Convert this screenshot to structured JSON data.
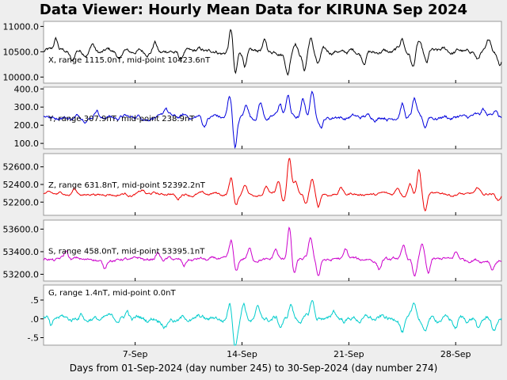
{
  "title": "Data Viewer:  Hourly Mean Data for KIRUNA Sep 2024",
  "chart_data": {
    "type": "line",
    "xlabel": "Days from 01-Sep-2024 (day number 245) to 30-Sep-2024 (day number 274)",
    "xlim": [
      1,
      31
    ],
    "xticks": [
      {
        "label": "7-Sep",
        "value": 7
      },
      {
        "label": "14-Sep",
        "value": 14
      },
      {
        "label": "21-Sep",
        "value": 21
      },
      {
        "label": "28-Sep",
        "value": 28
      }
    ],
    "series": [
      {
        "name": "X",
        "color": "#000000",
        "annotation": "X, range 1115.0nT, mid-point 10423.6nT",
        "ylim": [
          9880,
          11100
        ],
        "yticks": [
          {
            "label": "11000.0",
            "value": 11000
          },
          {
            "label": "10500.0",
            "value": 10500
          },
          {
            "label": "10000.0",
            "value": 10000
          }
        ],
        "base": 10500,
        "noise": 60,
        "events": [
          {
            "day": 1.8,
            "amp": 250
          },
          {
            "day": 2.9,
            "amp": -200
          },
          {
            "day": 4.2,
            "amp": 150
          },
          {
            "day": 6.0,
            "amp": -180
          },
          {
            "day": 8.3,
            "amp": 180
          },
          {
            "day": 10.0,
            "amp": -160
          },
          {
            "day": 13.3,
            "amp": 460
          },
          {
            "day": 13.55,
            "amp": -500
          },
          {
            "day": 14.2,
            "amp": -280
          },
          {
            "day": 15.5,
            "amp": 200
          },
          {
            "day": 17.0,
            "amp": -420
          },
          {
            "day": 17.5,
            "amp": 220
          },
          {
            "day": 18.1,
            "amp": -360
          },
          {
            "day": 18.5,
            "amp": 260
          },
          {
            "day": 19.0,
            "amp": -250
          },
          {
            "day": 22.0,
            "amp": -180
          },
          {
            "day": 24.5,
            "amp": 250
          },
          {
            "day": 25.2,
            "amp": -320
          },
          {
            "day": 25.6,
            "amp": 200
          },
          {
            "day": 26.1,
            "amp": -280
          },
          {
            "day": 29.4,
            "amp": -170
          },
          {
            "day": 30.2,
            "amp": 180
          },
          {
            "day": 30.9,
            "amp": -200
          }
        ]
      },
      {
        "name": "Y",
        "color": "#0000dd",
        "annotation": "Y, range 307.9nT, mid-point 238.9nT",
        "ylim": [
          70,
          410
        ],
        "yticks": [
          {
            "label": "400.0",
            "value": 400
          },
          {
            "label": "300.0",
            "value": 300
          },
          {
            "label": "200.0",
            "value": 200
          },
          {
            "label": "100.0",
            "value": 100
          }
        ],
        "base": 245,
        "noise": 15,
        "events": [
          {
            "day": 4.5,
            "amp": 50
          },
          {
            "day": 9.0,
            "amp": 45
          },
          {
            "day": 11.5,
            "amp": -50
          },
          {
            "day": 13.2,
            "amp": 110
          },
          {
            "day": 13.55,
            "amp": -160
          },
          {
            "day": 14.3,
            "amp": 60
          },
          {
            "day": 15.2,
            "amp": 80
          },
          {
            "day": 16.5,
            "amp": 70
          },
          {
            "day": 17.0,
            "amp": 120
          },
          {
            "day": 18.0,
            "amp": 90
          },
          {
            "day": 18.6,
            "amp": 150
          },
          {
            "day": 19.2,
            "amp": -50
          },
          {
            "day": 24.5,
            "amp": 80
          },
          {
            "day": 25.3,
            "amp": 90
          },
          {
            "day": 26.0,
            "amp": -60
          },
          {
            "day": 29.8,
            "amp": 40
          },
          {
            "day": 30.6,
            "amp": 50
          }
        ]
      },
      {
        "name": "Z",
        "color": "#ee0000",
        "annotation": "Z, range 631.8nT, mid-point 52392.2nT",
        "ylim": [
          52050,
          52750
        ],
        "yticks": [
          {
            "label": "52600.0",
            "value": 52600
          },
          {
            "label": "52400.0",
            "value": 52400
          },
          {
            "label": "52200.0",
            "value": 52200
          }
        ],
        "base": 52290,
        "noise": 20,
        "events": [
          {
            "day": 3.0,
            "amp": 60
          },
          {
            "day": 7.5,
            "amp": 40
          },
          {
            "day": 9.8,
            "amp": -50
          },
          {
            "day": 13.3,
            "amp": 180
          },
          {
            "day": 13.6,
            "amp": -130
          },
          {
            "day": 14.2,
            "amp": 110
          },
          {
            "day": 15.6,
            "amp": 100
          },
          {
            "day": 16.4,
            "amp": 140
          },
          {
            "day": 16.7,
            "amp": -100
          },
          {
            "day": 17.1,
            "amp": 400
          },
          {
            "day": 17.5,
            "amp": 150
          },
          {
            "day": 18.2,
            "amp": -120
          },
          {
            "day": 18.6,
            "amp": 170
          },
          {
            "day": 19.0,
            "amp": -150
          },
          {
            "day": 20.5,
            "amp": 80
          },
          {
            "day": 24.2,
            "amp": 70
          },
          {
            "day": 25.0,
            "amp": 140
          },
          {
            "day": 25.6,
            "amp": 280
          },
          {
            "day": 26.0,
            "amp": -190
          },
          {
            "day": 29.5,
            "amp": 60
          },
          {
            "day": 30.8,
            "amp": -60
          }
        ]
      },
      {
        "name": "S",
        "color": "#cc00cc",
        "annotation": "S, range 458.0nT, mid-point 53395.1nT",
        "ylim": [
          53140,
          53680
        ],
        "yticks": [
          {
            "label": "53600.0",
            "value": 53600
          },
          {
            "label": "53400.0",
            "value": 53400
          },
          {
            "label": "53200.0",
            "value": 53200
          }
        ],
        "base": 53330,
        "noise": 20,
        "events": [
          {
            "day": 2.5,
            "amp": 70
          },
          {
            "day": 5.0,
            "amp": -80
          },
          {
            "day": 8.5,
            "amp": 60
          },
          {
            "day": 10.2,
            "amp": -70
          },
          {
            "day": 13.3,
            "amp": 150
          },
          {
            "day": 13.6,
            "amp": -120
          },
          {
            "day": 14.5,
            "amp": 90
          },
          {
            "day": 16.2,
            "amp": 80
          },
          {
            "day": 17.1,
            "amp": 290
          },
          {
            "day": 17.4,
            "amp": -140
          },
          {
            "day": 18.5,
            "amp": 180
          },
          {
            "day": 19.0,
            "amp": -150
          },
          {
            "day": 20.8,
            "amp": 90
          },
          {
            "day": 23.0,
            "amp": -80
          },
          {
            "day": 24.6,
            "amp": 110
          },
          {
            "day": 25.3,
            "amp": -160
          },
          {
            "day": 25.8,
            "amp": 130
          },
          {
            "day": 26.2,
            "amp": -140
          },
          {
            "day": 28.0,
            "amp": 60
          },
          {
            "day": 30.4,
            "amp": -80
          }
        ]
      },
      {
        "name": "G",
        "color": "#00cccc",
        "annotation": "G, range 1.4nT, mid-point 0.0nT",
        "ylim": [
          -0.7,
          0.9
        ],
        "yticks": [
          {
            "label": ".5",
            "value": 0.5
          },
          {
            "label": ".0",
            "value": 0.0
          },
          {
            "label": "-.5",
            "value": -0.5
          }
        ],
        "base": 0.0,
        "noise": 0.09,
        "events": [
          {
            "day": 1.5,
            "amp": -0.25
          },
          {
            "day": 3.5,
            "amp": 0.15
          },
          {
            "day": 6.5,
            "amp": 0.2
          },
          {
            "day": 9.0,
            "amp": -0.15
          },
          {
            "day": 13.2,
            "amp": 0.4
          },
          {
            "day": 13.55,
            "amp": -0.65
          },
          {
            "day": 14.1,
            "amp": 0.45
          },
          {
            "day": 15.0,
            "amp": 0.25
          },
          {
            "day": 16.5,
            "amp": -0.2
          },
          {
            "day": 17.2,
            "amp": 0.35
          },
          {
            "day": 18.6,
            "amp": 0.5
          },
          {
            "day": 20.0,
            "amp": 0.2
          },
          {
            "day": 24.5,
            "amp": -0.3
          },
          {
            "day": 25.3,
            "amp": 0.35
          },
          {
            "day": 26.0,
            "amp": -0.4
          },
          {
            "day": 28.0,
            "amp": -0.25
          },
          {
            "day": 29.5,
            "amp": -0.3
          },
          {
            "day": 30.5,
            "amp": -0.35
          }
        ]
      }
    ]
  }
}
